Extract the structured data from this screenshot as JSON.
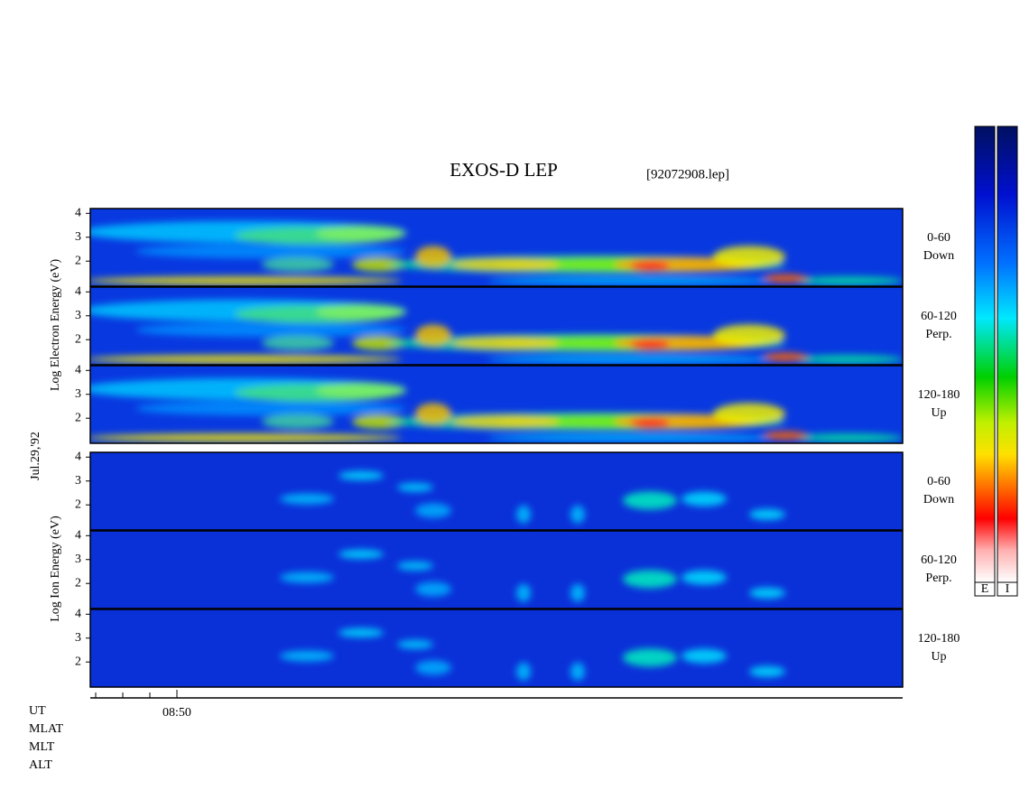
{
  "title": "EXOS-D LEP",
  "file_label": "[92072908.lep]",
  "date_label": "Jul.29,'92",
  "electron_axis_label": "Log  Electron  Energy (eV)",
  "ion_axis_label": "Log  Ion  Energy (eV)",
  "energy_axis": {
    "ylim": [
      0.95,
      4.2
    ],
    "yticks": [
      2,
      3,
      4
    ]
  },
  "panels": [
    {
      "pitch": "0-60",
      "direction": "Down"
    },
    {
      "pitch": "60-120",
      "direction": "Perp."
    },
    {
      "pitch": "120-180",
      "direction": "Up"
    },
    {
      "pitch": "0-60",
      "direction": "Down"
    },
    {
      "pitch": "60-120",
      "direction": "Perp."
    },
    {
      "pitch": "120-180",
      "direction": "Up"
    }
  ],
  "time_tick_label": "08:50",
  "row_labels": [
    "UT",
    "MLAT",
    "MLT",
    "ALT"
  ],
  "colorbar_labels": [
    "E",
    "I"
  ]
}
